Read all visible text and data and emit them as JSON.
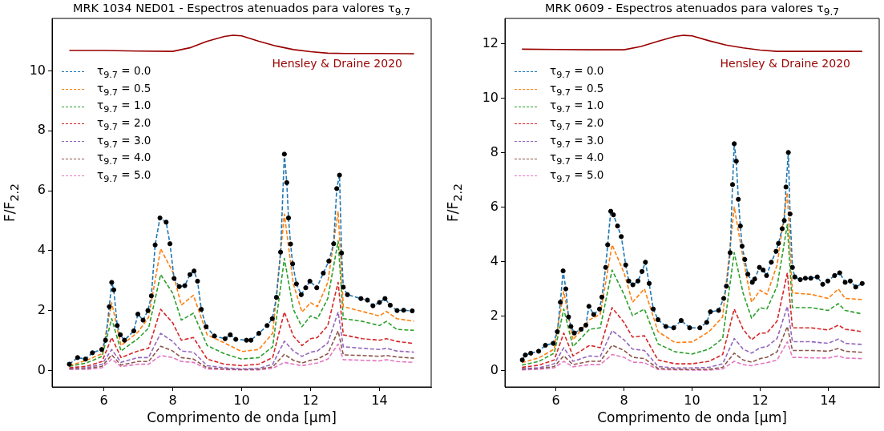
{
  "chart_data": [
    {
      "type": "line",
      "title": "MRK 1034 NED01 - Espectros atenuados para valores τ$_{9.7}$",
      "xlabel": "Comprimento de onda [μm]",
      "ylabel": "F/F$_{2.2}$",
      "xlim": [
        4.5,
        15.5
      ],
      "ylim": [
        -0.55,
        11.75
      ],
      "xticks": [
        6,
        8,
        10,
        12,
        14
      ],
      "yticks": [
        0,
        2,
        4,
        6,
        8,
        10
      ],
      "grid": false,
      "legend": "top left",
      "annotations": [
        "Hensley & Draine 2020"
      ],
      "series": [
        {
          "name": "τ$_{9.7}$ = 0.0",
          "type": "line",
          "line_style": "dashed",
          "marker": "none",
          "color": "#1f77b4",
          "x": [
            5.0,
            5.24,
            5.47,
            5.67,
            5.94,
            6.05,
            6.16,
            6.23,
            6.29,
            6.39,
            6.48,
            6.6,
            6.87,
            6.99,
            7.14,
            7.28,
            7.38,
            7.49,
            7.63,
            7.81,
            7.92,
            8.04,
            8.19,
            8.35,
            8.5,
            8.62,
            8.72,
            8.83,
            8.97,
            9.21,
            9.52,
            9.67,
            9.83,
            10.14,
            10.27,
            10.5,
            10.74,
            10.89,
            11.01,
            11.13,
            11.24,
            11.31,
            11.36,
            11.42,
            11.48,
            11.59,
            11.73,
            11.86,
            11.98,
            12.18,
            12.37,
            12.53,
            12.67,
            12.76,
            12.84,
            12.9,
            12.95,
            13.07,
            13.46,
            13.65,
            13.81,
            14.0,
            14.16,
            14.31,
            14.51,
            14.7,
            14.95
          ],
          "values": [
            0.21,
            0.43,
            0.38,
            0.59,
            0.7,
            1.01,
            2.13,
            2.94,
            2.69,
            1.5,
            1.19,
            1.01,
            1.32,
            1.88,
            1.68,
            2.0,
            2.49,
            4.19,
            5.09,
            4.95,
            4.23,
            3.07,
            2.8,
            2.83,
            3.2,
            3.32,
            2.98,
            2.04,
            1.46,
            1.15,
            1.06,
            1.19,
            1.04,
            1.01,
            1.01,
            1.24,
            1.5,
            1.73,
            2.44,
            3.95,
            7.22,
            6.27,
            5.09,
            4.22,
            3.56,
            2.89,
            2.53,
            2.76,
            2.98,
            2.76,
            3.25,
            3.65,
            4.23,
            6.07,
            6.52,
            3.92,
            2.78,
            2.53,
            2.4,
            2.35,
            2.16,
            2.27,
            2.4,
            2.18,
            2.0,
            2.01,
            1.99
          ]
        },
        {
          "name": "τ$_{9.7}$ = 0.5",
          "type": "line",
          "line_style": "dashed",
          "marker": "none",
          "color": "#ff7f0e",
          "x": [
            5.0,
            5.5,
            5.95,
            6.23,
            6.5,
            6.99,
            7.3,
            7.65,
            8.0,
            8.25,
            8.6,
            9.0,
            9.5,
            10.0,
            10.5,
            10.9,
            11.24,
            11.5,
            11.75,
            12.0,
            12.2,
            12.5,
            12.8,
            12.95,
            13.5,
            14.0,
            14.2,
            14.5,
            15.0
          ],
          "values": [
            0.16,
            0.34,
            0.56,
            2.26,
            0.83,
            1.28,
            1.77,
            4.06,
            3.29,
            2.18,
            2.51,
            1.19,
            0.92,
            0.63,
            0.7,
            1.24,
            5.22,
            2.89,
            1.95,
            2.26,
            2.13,
            2.94,
            5.31,
            2.13,
            1.97,
            1.82,
            1.97,
            1.73,
            1.64
          ]
        },
        {
          "name": "τ$_{9.7}$ = 1.0",
          "type": "line",
          "line_style": "dashed",
          "marker": "none",
          "color": "#2ca02c",
          "x": [
            5.0,
            5.5,
            5.95,
            6.23,
            6.5,
            6.99,
            7.3,
            7.65,
            8.0,
            8.25,
            8.6,
            9.0,
            9.5,
            10.0,
            10.5,
            10.9,
            11.24,
            11.5,
            11.75,
            12.0,
            12.2,
            12.5,
            12.8,
            12.95,
            13.5,
            14.0,
            14.2,
            14.5,
            15.0
          ],
          "values": [
            0.14,
            0.25,
            0.47,
            1.73,
            0.65,
            1.06,
            1.41,
            3.2,
            2.58,
            1.68,
            1.91,
            0.83,
            0.56,
            0.38,
            0.43,
            0.79,
            3.74,
            2.04,
            1.46,
            1.82,
            1.73,
            2.4,
            4.32,
            1.73,
            1.64,
            1.5,
            1.64,
            1.37,
            1.34
          ]
        },
        {
          "name": "τ$_{9.7}$ = 2.0",
          "type": "line",
          "line_style": "dashed",
          "marker": "none",
          "color": "#d62728",
          "x": [
            5.0,
            5.5,
            5.95,
            6.23,
            6.5,
            6.99,
            7.3,
            7.65,
            8.0,
            8.25,
            8.6,
            9.0,
            9.5,
            10.0,
            10.5,
            10.9,
            11.24,
            11.5,
            11.75,
            12.0,
            12.2,
            12.5,
            12.8,
            12.95,
            13.5,
            14.0,
            14.2,
            14.5,
            15.0
          ],
          "values": [
            0.09,
            0.14,
            0.3,
            1.1,
            0.43,
            0.65,
            0.74,
            2.04,
            1.59,
            1.01,
            1.1,
            0.38,
            0.21,
            0.16,
            0.21,
            0.43,
            1.95,
            1.15,
            0.83,
            1.06,
            1.1,
            1.5,
            2.94,
            1.19,
            1.06,
            1.01,
            1.06,
            0.97,
            0.9
          ]
        },
        {
          "name": "τ$_{9.7}$ = 3.0",
          "type": "line",
          "line_style": "dashed",
          "marker": "none",
          "color": "#9467bd",
          "x": [
            5.0,
            5.5,
            5.95,
            6.23,
            6.5,
            6.99,
            7.3,
            7.65,
            8.0,
            8.25,
            8.6,
            9.0,
            9.5,
            10.0,
            10.5,
            10.9,
            11.24,
            11.5,
            11.75,
            12.0,
            12.2,
            12.5,
            12.8,
            12.95,
            13.5,
            14.0,
            14.2,
            14.5,
            15.0
          ],
          "values": [
            0.07,
            0.09,
            0.21,
            0.7,
            0.27,
            0.43,
            0.43,
            1.24,
            0.97,
            0.65,
            0.61,
            0.16,
            0.09,
            0.05,
            0.07,
            0.21,
            0.98,
            0.65,
            0.47,
            0.61,
            0.65,
            0.92,
            1.95,
            0.79,
            0.74,
            0.7,
            0.74,
            0.65,
            0.61
          ]
        },
        {
          "name": "τ$_{9.7}$ = 4.0",
          "type": "line",
          "line_style": "dashed",
          "marker": "none",
          "color": "#8c564b",
          "x": [
            5.0,
            5.5,
            5.95,
            6.23,
            6.5,
            6.99,
            7.3,
            7.65,
            8.0,
            8.25,
            8.6,
            9.0,
            9.5,
            10.0,
            10.5,
            10.9,
            11.24,
            11.5,
            11.75,
            12.0,
            12.2,
            12.5,
            12.8,
            12.95,
            13.5,
            14.0,
            14.2,
            14.5,
            15.0
          ],
          "values": [
            0.05,
            0.07,
            0.14,
            0.52,
            0.18,
            0.3,
            0.3,
            0.81,
            0.65,
            0.43,
            0.38,
            0.09,
            0.05,
            0.03,
            0.04,
            0.12,
            0.54,
            0.34,
            0.25,
            0.34,
            0.38,
            0.56,
            1.32,
            0.52,
            0.5,
            0.47,
            0.5,
            0.45,
            0.41
          ]
        },
        {
          "name": "τ$_{9.7}$ = 5.0",
          "type": "line",
          "line_style": "dashed",
          "marker": "none",
          "color": "#e377c2",
          "x": [
            5.0,
            5.5,
            5.95,
            6.23,
            6.5,
            6.99,
            7.3,
            7.65,
            8.0,
            8.25,
            8.6,
            9.0,
            9.5,
            10.0,
            10.5,
            10.9,
            11.24,
            11.5,
            11.75,
            12.0,
            12.2,
            12.5,
            12.8,
            12.95,
            13.5,
            14.0,
            14.2,
            14.5,
            15.0
          ],
          "values": [
            0.04,
            0.04,
            0.09,
            0.38,
            0.13,
            0.21,
            0.21,
            0.5,
            0.43,
            0.3,
            0.27,
            0.05,
            0.03,
            0.02,
            0.02,
            0.07,
            0.27,
            0.21,
            0.16,
            0.21,
            0.25,
            0.38,
            0.88,
            0.36,
            0.34,
            0.32,
            0.36,
            0.3,
            0.27
          ]
        },
        {
          "type": "scatter",
          "marker": "circle",
          "color": "#000000",
          "x": [
            5.0,
            5.24,
            5.47,
            5.67,
            5.94,
            6.05,
            6.16,
            6.23,
            6.29,
            6.39,
            6.48,
            6.6,
            6.87,
            6.99,
            7.14,
            7.28,
            7.38,
            7.49,
            7.63,
            7.81,
            7.92,
            8.04,
            8.19,
            8.35,
            8.5,
            8.62,
            8.72,
            8.83,
            8.97,
            9.21,
            9.52,
            9.67,
            9.83,
            10.14,
            10.27,
            10.5,
            10.74,
            10.89,
            11.01,
            11.13,
            11.24,
            11.31,
            11.36,
            11.42,
            11.48,
            11.59,
            11.73,
            11.86,
            11.98,
            12.18,
            12.37,
            12.53,
            12.67,
            12.76,
            12.84,
            12.9,
            12.95,
            13.07,
            13.46,
            13.65,
            13.81,
            14.0,
            14.16,
            14.31,
            14.51,
            14.7,
            14.95
          ],
          "values": [
            0.21,
            0.43,
            0.38,
            0.59,
            0.7,
            1.01,
            2.13,
            2.94,
            2.69,
            1.5,
            1.19,
            1.01,
            1.32,
            1.88,
            1.68,
            2.0,
            2.49,
            4.19,
            5.09,
            4.95,
            4.23,
            3.07,
            2.8,
            2.83,
            3.2,
            3.32,
            2.98,
            2.04,
            1.46,
            1.15,
            1.06,
            1.19,
            1.04,
            1.01,
            1.01,
            1.24,
            1.5,
            1.73,
            2.44,
            3.95,
            7.22,
            6.27,
            5.09,
            4.22,
            3.56,
            2.89,
            2.53,
            2.76,
            2.98,
            2.76,
            3.25,
            3.65,
            4.23,
            6.07,
            6.52,
            3.92,
            2.78,
            2.53,
            2.4,
            2.35,
            2.16,
            2.27,
            2.4,
            2.18,
            2.0,
            2.01,
            1.99
          ]
        },
        {
          "type": "line",
          "line_style": "solid",
          "marker": "none",
          "color": "#990000",
          "x": [
            5.0,
            6.0,
            7.0,
            8.0,
            8.5,
            9.0,
            9.5,
            9.75,
            10.0,
            10.5,
            11.0,
            11.5,
            12.0,
            12.5,
            13.0,
            14.0,
            15.0
          ],
          "values": [
            10.68,
            10.68,
            10.66,
            10.65,
            10.77,
            10.99,
            11.15,
            11.19,
            11.17,
            10.99,
            10.83,
            10.71,
            10.64,
            10.59,
            10.58,
            10.58,
            10.57
          ]
        }
      ]
    },
    {
      "type": "line",
      "title": "MRK 0609 - Espectros atenuados para valores τ$_{9.7}$",
      "xlabel": "Comprimento de onda [μm]",
      "ylabel": "F/F$_{2.2}$",
      "xlim": [
        4.5,
        15.5
      ],
      "ylim": [
        -0.6,
        12.93
      ],
      "xticks": [
        6,
        8,
        10,
        12,
        14
      ],
      "yticks": [
        0,
        2,
        4,
        6,
        8,
        10,
        12
      ],
      "grid": false,
      "legend": "top left",
      "annotations": [
        "Hensley & Draine 2020"
      ],
      "series": [
        {
          "name": "τ$_{9.7}$ = 0.0",
          "type": "line",
          "line_style": "dashed",
          "marker": "none",
          "color": "#1f77b4",
          "x": [
            5.01,
            5.1,
            5.26,
            5.49,
            5.69,
            5.92,
            6.04,
            6.13,
            6.21,
            6.29,
            6.37,
            6.44,
            6.54,
            6.74,
            6.88,
            6.97,
            7.11,
            7.28,
            7.35,
            7.46,
            7.52,
            7.61,
            7.69,
            7.81,
            7.92,
            8.05,
            8.14,
            8.26,
            8.41,
            8.53,
            8.63,
            8.74,
            8.86,
            9.0,
            9.23,
            9.46,
            9.68,
            9.93,
            10.23,
            10.43,
            10.54,
            10.78,
            10.93,
            11.01,
            11.12,
            11.19,
            11.24,
            11.3,
            11.36,
            11.42,
            11.47,
            11.55,
            11.64,
            11.77,
            11.84,
            11.98,
            12.09,
            12.19,
            12.33,
            12.47,
            12.54,
            12.65,
            12.71,
            12.76,
            12.83,
            12.88,
            12.95,
            13.02,
            13.18,
            13.33,
            13.49,
            13.68,
            13.84,
            13.99,
            14.19,
            14.34,
            14.5,
            14.65,
            14.81,
            15.0
          ],
          "values": [
            0.39,
            0.57,
            0.64,
            0.71,
            0.93,
            1.0,
            1.43,
            2.51,
            3.66,
            3.0,
            1.97,
            1.62,
            1.38,
            1.52,
            1.67,
            2.36,
            2.06,
            2.26,
            2.7,
            3.79,
            4.62,
            5.85,
            5.72,
            5.31,
            4.92,
            3.88,
            3.29,
            3.15,
            3.29,
            3.64,
            3.98,
            3.2,
            2.26,
            1.87,
            1.62,
            1.57,
            1.84,
            1.57,
            1.57,
            1.77,
            2.16,
            2.21,
            2.65,
            3.1,
            4.33,
            6.83,
            8.33,
            7.69,
            6.29,
            5.31,
            4.57,
            4.08,
            3.54,
            3.24,
            3.36,
            3.79,
            3.69,
            3.49,
            3.98,
            4.38,
            4.67,
            5.21,
            5.51,
            6.74,
            8.01,
            5.75,
            3.79,
            3.44,
            3.34,
            3.39,
            3.39,
            3.44,
            3.17,
            3.29,
            3.49,
            3.59,
            3.24,
            3.29,
            3.07,
            3.2
          ]
        },
        {
          "name": "τ$_{9.7}$ = 0.5",
          "type": "line",
          "line_style": "dashed",
          "marker": "none",
          "color": "#ff7f0e",
          "x": [
            5.0,
            5.5,
            5.95,
            6.23,
            6.5,
            6.99,
            7.3,
            7.65,
            8.0,
            8.25,
            8.6,
            9.0,
            9.5,
            10.0,
            10.5,
            10.9,
            11.24,
            11.5,
            11.75,
            12.0,
            12.2,
            12.5,
            12.8,
            12.95,
            13.5,
            14.0,
            14.3,
            14.5,
            15.0
          ],
          "values": [
            0.29,
            0.47,
            0.79,
            2.9,
            1.13,
            1.87,
            2.06,
            4.62,
            3.59,
            2.51,
            3.0,
            1.43,
            1.03,
            1.05,
            1.43,
            1.97,
            6.0,
            4.13,
            2.51,
            2.95,
            2.8,
            3.88,
            6.54,
            2.85,
            2.8,
            2.65,
            3.0,
            2.65,
            2.61
          ]
        },
        {
          "name": "τ$_{9.7}$ = 1.0",
          "type": "line",
          "line_style": "dashed",
          "marker": "none",
          "color": "#2ca02c",
          "x": [
            5.0,
            5.5,
            5.95,
            6.23,
            6.5,
            6.99,
            7.3,
            7.65,
            8.0,
            8.25,
            8.6,
            9.0,
            9.5,
            10.0,
            10.5,
            10.9,
            11.24,
            11.5,
            11.75,
            12.0,
            12.2,
            12.5,
            12.8,
            12.95,
            13.5,
            14.0,
            14.3,
            14.5,
            15.0
          ],
          "values": [
            0.2,
            0.34,
            0.64,
            2.26,
            0.88,
            1.52,
            1.57,
            3.69,
            2.8,
            2.02,
            2.26,
            0.98,
            0.69,
            0.61,
            0.79,
            1.18,
            4.33,
            2.85,
            1.92,
            2.31,
            2.26,
            3.1,
            5.36,
            2.31,
            2.31,
            2.21,
            2.46,
            2.21,
            2.08
          ]
        },
        {
          "name": "τ$_{9.7}$ = 2.0",
          "type": "line",
          "line_style": "dashed",
          "marker": "none",
          "color": "#d62728",
          "x": [
            5.0,
            5.5,
            5.95,
            6.23,
            6.5,
            6.99,
            7.3,
            7.65,
            8.0,
            8.25,
            8.6,
            9.0,
            9.5,
            10.0,
            10.5,
            10.9,
            11.24,
            11.5,
            11.75,
            12.0,
            12.2,
            12.5,
            12.8,
            12.95,
            13.5,
            14.0,
            14.3,
            14.5,
            15.0
          ],
          "values": [
            0.12,
            0.2,
            0.39,
            1.38,
            0.54,
            0.93,
            0.84,
            2.31,
            1.77,
            1.23,
            1.28,
            0.39,
            0.25,
            0.25,
            0.34,
            0.59,
            2.26,
            1.52,
            1.13,
            1.38,
            1.38,
            1.82,
            3.59,
            1.57,
            1.57,
            1.49,
            1.67,
            1.52,
            1.43
          ]
        },
        {
          "name": "τ$_{9.7}$ = 3.0",
          "type": "line",
          "line_style": "dashed",
          "marker": "none",
          "color": "#9467bd",
          "x": [
            5.0,
            5.5,
            5.95,
            6.23,
            6.5,
            6.99,
            7.3,
            7.65,
            8.0,
            8.25,
            8.6,
            9.0,
            9.5,
            10.0,
            10.5,
            10.9,
            11.24,
            11.5,
            11.75,
            12.0,
            12.2,
            12.5,
            12.8,
            12.95,
            13.5,
            14.0,
            14.3,
            14.5,
            15.0
          ],
          "values": [
            0.08,
            0.1,
            0.25,
            0.84,
            0.34,
            0.54,
            0.51,
            1.47,
            1.13,
            0.79,
            0.74,
            0.15,
            0.1,
            0.1,
            0.12,
            0.25,
            1.18,
            0.79,
            0.64,
            0.84,
            0.88,
            1.18,
            2.36,
            1.06,
            1.06,
            1.0,
            1.16,
            1.0,
            0.96
          ]
        },
        {
          "name": "τ$_{9.7}$ = 4.0",
          "type": "line",
          "line_style": "dashed",
          "marker": "none",
          "color": "#8c564b",
          "x": [
            5.0,
            5.5,
            5.95,
            6.23,
            6.5,
            6.99,
            7.3,
            7.65,
            8.0,
            8.25,
            8.6,
            9.0,
            9.5,
            10.0,
            10.5,
            10.9,
            11.24,
            11.5,
            11.75,
            12.0,
            12.2,
            12.5,
            12.8,
            12.95,
            13.5,
            14.0,
            14.3,
            14.5,
            15.0
          ],
          "values": [
            0.05,
            0.08,
            0.15,
            0.54,
            0.22,
            0.34,
            0.34,
            0.93,
            0.74,
            0.49,
            0.44,
            0.08,
            0.05,
            0.04,
            0.05,
            0.12,
            0.64,
            0.39,
            0.31,
            0.44,
            0.49,
            0.69,
            1.62,
            0.74,
            0.74,
            0.71,
            0.81,
            0.71,
            0.67
          ]
        },
        {
          "name": "τ$_{9.7}$ = 5.0",
          "type": "line",
          "line_style": "dashed",
          "marker": "none",
          "color": "#e377c2",
          "x": [
            5.0,
            5.5,
            5.95,
            6.23,
            6.5,
            6.99,
            7.3,
            7.65,
            8.0,
            8.25,
            8.6,
            9.0,
            9.5,
            10.0,
            10.5,
            10.9,
            11.24,
            11.5,
            11.75,
            12.0,
            12.2,
            12.5,
            12.8,
            12.95,
            13.5,
            14.0,
            14.3,
            14.5,
            15.0
          ],
          "values": [
            0.03,
            0.05,
            0.1,
            0.34,
            0.14,
            0.22,
            0.22,
            0.59,
            0.49,
            0.31,
            0.29,
            0.04,
            0.03,
            0.02,
            0.02,
            0.06,
            0.34,
            0.22,
            0.18,
            0.25,
            0.29,
            0.39,
            1.06,
            0.49,
            0.47,
            0.46,
            0.54,
            0.46,
            0.44
          ]
        },
        {
          "type": "scatter",
          "marker": "circle",
          "color": "#000000",
          "x": [
            5.01,
            5.1,
            5.26,
            5.49,
            5.69,
            5.92,
            6.04,
            6.13,
            6.21,
            6.29,
            6.37,
            6.44,
            6.54,
            6.74,
            6.88,
            6.97,
            7.11,
            7.28,
            7.35,
            7.46,
            7.52,
            7.61,
            7.69,
            7.81,
            7.92,
            8.05,
            8.14,
            8.26,
            8.41,
            8.53,
            8.63,
            8.74,
            8.86,
            9.0,
            9.23,
            9.46,
            9.68,
            9.93,
            10.23,
            10.43,
            10.54,
            10.78,
            10.93,
            11.01,
            11.12,
            11.19,
            11.24,
            11.3,
            11.36,
            11.42,
            11.47,
            11.55,
            11.64,
            11.77,
            11.84,
            11.98,
            12.09,
            12.19,
            12.33,
            12.47,
            12.54,
            12.65,
            12.71,
            12.76,
            12.83,
            12.88,
            12.95,
            13.02,
            13.18,
            13.33,
            13.49,
            13.68,
            13.84,
            13.99,
            14.19,
            14.34,
            14.5,
            14.65,
            14.81,
            15.0
          ],
          "values": [
            0.39,
            0.57,
            0.64,
            0.71,
            0.93,
            1.0,
            1.43,
            2.51,
            3.66,
            3.0,
            1.97,
            1.62,
            1.38,
            1.52,
            1.67,
            2.36,
            2.06,
            2.26,
            2.7,
            3.79,
            4.62,
            5.85,
            5.72,
            5.31,
            4.92,
            3.88,
            3.29,
            3.15,
            3.29,
            3.64,
            3.98,
            3.2,
            2.26,
            1.87,
            1.62,
            1.57,
            1.84,
            1.57,
            1.57,
            1.77,
            2.16,
            2.21,
            2.65,
            3.1,
            4.33,
            6.83,
            8.33,
            7.69,
            6.29,
            5.31,
            4.57,
            4.08,
            3.54,
            3.24,
            3.36,
            3.79,
            3.69,
            3.49,
            3.98,
            4.38,
            4.67,
            5.21,
            5.51,
            6.74,
            8.01,
            5.75,
            3.79,
            3.44,
            3.34,
            3.39,
            3.39,
            3.44,
            3.17,
            3.29,
            3.49,
            3.59,
            3.24,
            3.29,
            3.07,
            3.2
          ]
        },
        {
          "type": "line",
          "line_style": "solid",
          "marker": "none",
          "color": "#990000",
          "x": [
            5.0,
            6.0,
            7.0,
            8.0,
            8.5,
            9.0,
            9.5,
            9.75,
            10.0,
            10.5,
            11.0,
            11.5,
            12.0,
            12.5,
            13.0,
            14.0,
            15.0
          ],
          "values": [
            11.8,
            11.79,
            11.78,
            11.78,
            11.9,
            12.09,
            12.27,
            12.31,
            12.29,
            12.11,
            11.95,
            11.85,
            11.77,
            11.72,
            11.72,
            11.72,
            11.72
          ]
        }
      ]
    }
  ]
}
